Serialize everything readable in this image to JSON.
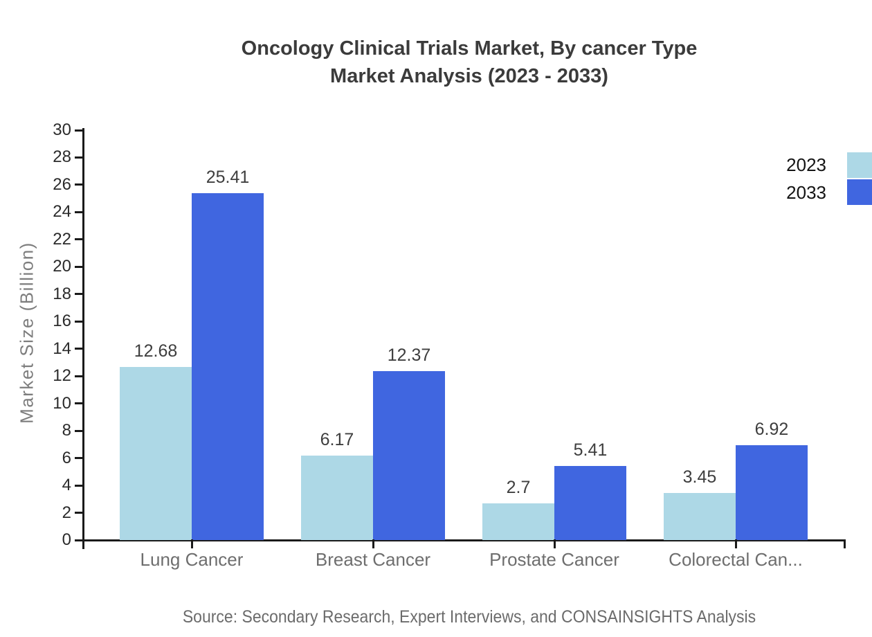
{
  "source": "Source: Secondary Research, Expert Interviews, and CONSAINSIGHTS Analysis",
  "chart_data": {
    "type": "bar",
    "title": "Oncology Clinical Trials Market, By cancer Type Market Analysis (2023 - 2033)",
    "title_lines": [
      "Oncology Clinical Trials Market, By cancer Type",
      "Market Analysis (2023 - 2033)"
    ],
    "categories": [
      "Lung Cancer",
      "Breast Cancer",
      "Prostate Cancer",
      "Colorectal Can..."
    ],
    "series": [
      {
        "name": "2023",
        "color": "#ADD8E6",
        "values": [
          12.68,
          6.17,
          2.7,
          3.45
        ]
      },
      {
        "name": "2033",
        "color": "#4066E0",
        "values": [
          25.41,
          12.37,
          5.41,
          6.92
        ]
      }
    ],
    "xlabel": "",
    "ylabel": "Market Size (Billion)",
    "ylim": [
      0,
      30
    ],
    "ytick_step": 2,
    "grid": false,
    "data_labels": true,
    "legend_position": "top-right",
    "axis_color": "#1a1a1a",
    "tick_label_color": "#2b2b2b",
    "category_label_color": "#6e6e6e",
    "value_label_color": "#3e3e3e",
    "title_color": "#3b3b3b"
  }
}
